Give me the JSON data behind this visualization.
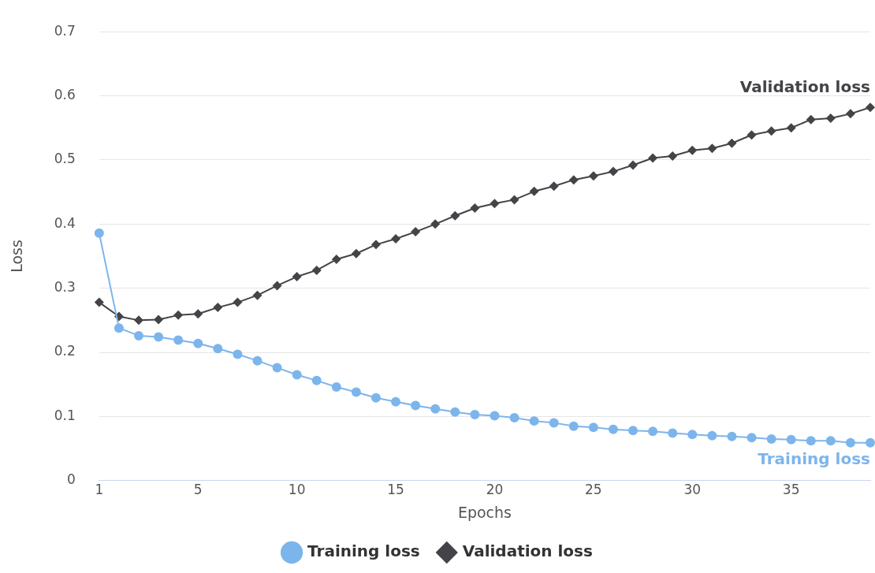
{
  "chart_data": {
    "type": "line",
    "xlabel": "Epochs",
    "ylabel": "Loss",
    "categories": [
      "1",
      null,
      null,
      null,
      null,
      "5",
      null,
      null,
      null,
      null,
      "10",
      null,
      null,
      null,
      null,
      "15",
      null,
      null,
      null,
      null,
      "20",
      null,
      null,
      null,
      null,
      "25",
      null,
      null,
      null,
      null,
      "30",
      null,
      null,
      null,
      null,
      "35",
      null,
      null,
      null,
      null
    ],
    "ylim": [
      0,
      0.7
    ],
    "yticks": [
      0,
      0.1,
      0.2,
      0.3,
      0.4,
      0.5,
      0.6,
      0.7
    ],
    "grid": "y",
    "legend": "bottom",
    "line_style": "solid",
    "series": [
      {
        "name": "Training loss",
        "color": "#7cb5ec",
        "marker": "circle",
        "values": [
          0.386,
          0.238,
          0.226,
          0.224,
          0.219,
          0.214,
          0.206,
          0.197,
          0.187,
          0.176,
          0.165,
          0.156,
          0.146,
          0.138,
          0.129,
          0.123,
          0.117,
          0.112,
          0.107,
          0.103,
          0.101,
          0.098,
          0.093,
          0.09,
          0.085,
          0.083,
          0.08,
          0.078,
          0.077,
          0.074,
          0.072,
          0.07,
          0.069,
          0.067,
          0.065,
          0.064,
          0.062,
          0.062,
          0.059,
          0.059
        ]
      },
      {
        "name": "Validation loss",
        "color": "#434348",
        "marker": "diamond",
        "values": [
          0.278,
          0.256,
          0.25,
          0.251,
          0.258,
          0.26,
          0.27,
          0.278,
          0.289,
          0.304,
          0.318,
          0.328,
          0.345,
          0.354,
          0.368,
          0.377,
          0.388,
          0.4,
          0.413,
          0.425,
          0.432,
          0.438,
          0.451,
          0.459,
          0.469,
          0.475,
          0.482,
          0.492,
          0.503,
          0.506,
          0.515,
          0.518,
          0.526,
          0.539,
          0.545,
          0.55,
          0.563,
          0.565,
          0.572,
          0.582
        ]
      }
    ]
  }
}
